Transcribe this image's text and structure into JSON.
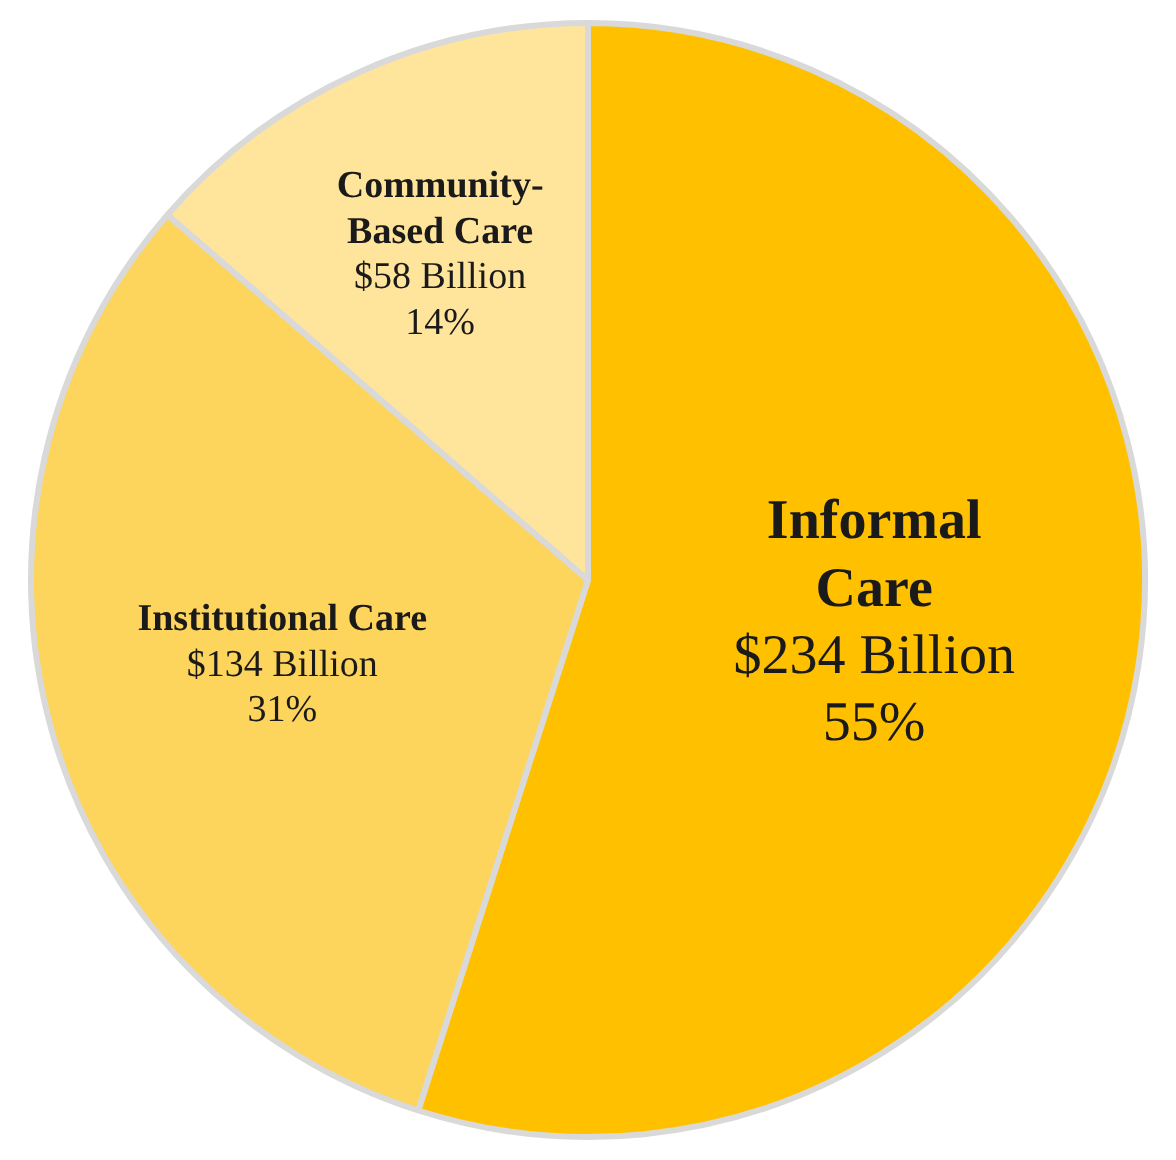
{
  "chart_data": {
    "type": "pie",
    "categories": [
      "Informal Care",
      "Institutional Care",
      "Community-Based Care"
    ],
    "values": [
      234,
      134,
      58
    ],
    "value_labels": [
      "$234 Billion\n55%",
      "$134 Billion\n31%",
      "$58 Billion\n14%"
    ],
    "colors": [
      "#ffc000",
      "#fdd45c",
      "#ffe49c"
    ],
    "legend": false
  }
}
